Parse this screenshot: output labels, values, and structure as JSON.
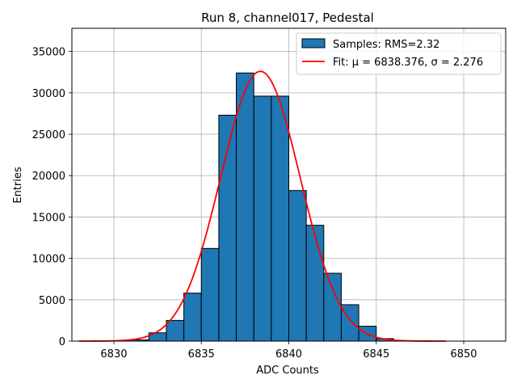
{
  "chart_data": {
    "type": "bar",
    "title": "Run 8, channel017, Pedestal",
    "xlabel": "ADC Counts",
    "ylabel": "Entries",
    "xlim": [
      6827.6,
      6852.4
    ],
    "ylim": [
      0,
      37800
    ],
    "grid": true,
    "xticks": [
      6830,
      6835,
      6840,
      6845,
      6850
    ],
    "yticks": [
      0,
      5000,
      10000,
      15000,
      20000,
      25000,
      30000,
      35000
    ],
    "series": [
      {
        "name": "Samples: RMS=2.32",
        "type": "histogram",
        "color": "#1f77b4",
        "bin_edges": [
          6830,
          6831,
          6832,
          6833,
          6834,
          6835,
          6836,
          6837,
          6838,
          6839,
          6840,
          6841,
          6842,
          6843,
          6844,
          6845,
          6846
        ],
        "values": [
          0,
          150,
          1000,
          2500,
          5800,
          11200,
          27300,
          32400,
          29600,
          29600,
          18200,
          14000,
          8200,
          4400,
          1800,
          300
        ]
      },
      {
        "name": "Fit: μ = 6838.376, σ = 2.276",
        "type": "line",
        "color": "#ff0000",
        "function": "gaussian",
        "mu": 6838.376,
        "sigma": 2.276,
        "amplitude": 32600,
        "x_range": [
          6828,
          6849
        ]
      }
    ],
    "legend": {
      "position": "top-right",
      "entries": [
        "Samples: RMS=2.32",
        "Fit: μ = 6838.376, σ = 2.276"
      ]
    }
  }
}
